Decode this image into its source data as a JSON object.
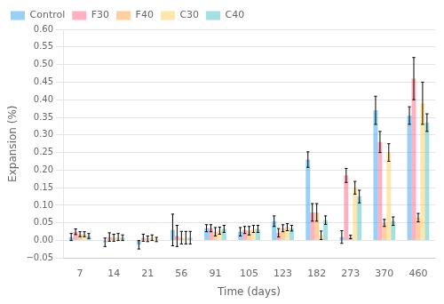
{
  "chart_data": {
    "type": "bar",
    "xlabel": "Time (days)",
    "ylabel": "Expansion (%)",
    "categories": [
      "7",
      "14",
      "21",
      "56",
      "91",
      "105",
      "123",
      "182",
      "273",
      "370",
      "460"
    ],
    "series": [
      {
        "name": "Control",
        "values": [
          0.01,
          -0.005,
          -0.012,
          0.03,
          0.035,
          0.025,
          0.055,
          0.23,
          0.01,
          0.37,
          0.355
        ],
        "errors": [
          0.01,
          0.012,
          0.012,
          0.045,
          0.01,
          0.012,
          0.015,
          0.022,
          0.018,
          0.04,
          0.025
        ]
      },
      {
        "name": "F30",
        "values": [
          0.025,
          0.01,
          0.008,
          0.013,
          0.035,
          0.03,
          0.022,
          0.08,
          0.185,
          0.28,
          0.46
        ],
        "errors": [
          0.008,
          0.012,
          0.01,
          0.03,
          0.01,
          0.01,
          0.012,
          0.025,
          0.02,
          0.03,
          0.06
        ]
      },
      {
        "name": "F40",
        "values": [
          0.018,
          0.008,
          0.005,
          0.008,
          0.025,
          0.028,
          0.035,
          0.08,
          0.01,
          0.05,
          0.065
        ],
        "errors": [
          0.007,
          0.01,
          0.008,
          0.018,
          0.012,
          0.012,
          0.01,
          0.025,
          0.005,
          0.01,
          0.012
        ]
      },
      {
        "name": "C30",
        "values": [
          0.018,
          0.01,
          0.008,
          0.008,
          0.028,
          0.033,
          0.038,
          0.015,
          0.15,
          0.25,
          0.39
        ],
        "errors": [
          0.007,
          0.01,
          0.008,
          0.018,
          0.01,
          0.01,
          0.01,
          0.012,
          0.018,
          0.025,
          0.06
        ]
      },
      {
        "name": "C40",
        "values": [
          0.013,
          0.008,
          0.003,
          0.008,
          0.033,
          0.033,
          0.035,
          0.058,
          0.125,
          0.055,
          0.335
        ],
        "errors": [
          0.007,
          0.008,
          0.006,
          0.018,
          0.01,
          0.01,
          0.008,
          0.012,
          0.018,
          0.012,
          0.025
        ]
      }
    ],
    "ylim": [
      -0.05,
      0.6
    ],
    "yticks": [
      {
        "value": -0.05,
        "label": "−0.05"
      },
      {
        "value": 0.0,
        "label": "0.00"
      },
      0.05,
      {
        "value": 0.1,
        "label": "0.10"
      },
      0.15,
      {
        "value": 0.2,
        "label": "0.20"
      },
      0.25,
      {
        "value": 0.3,
        "label": "0.30"
      },
      0.35,
      {
        "value": 0.4,
        "label": "0.40"
      },
      0.45,
      {
        "value": 0.5,
        "label": "0.50"
      },
      0.55,
      {
        "value": 0.6,
        "label": "0.60"
      }
    ],
    "grid": true,
    "legend": "upper left"
  }
}
